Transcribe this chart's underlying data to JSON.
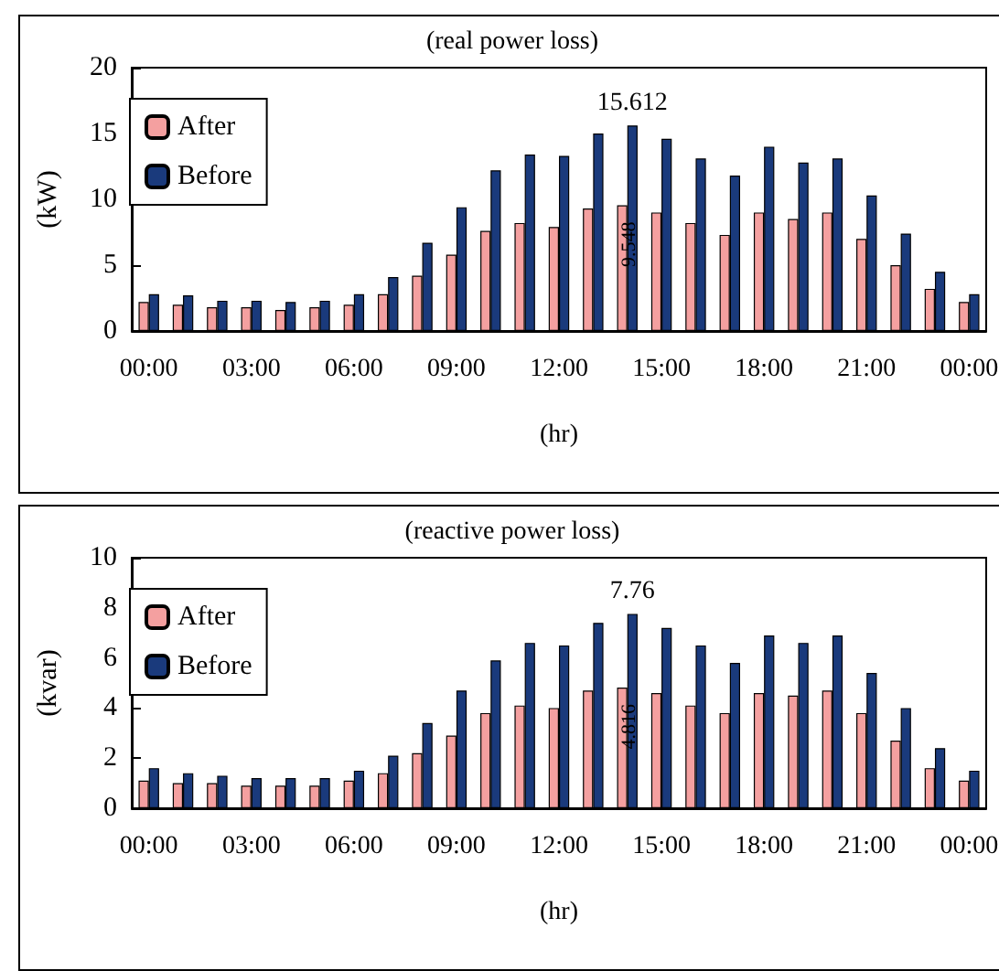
{
  "chart_data": [
    {
      "type": "bar",
      "title": "(real power loss)",
      "xlabel": "(hr)",
      "ylabel": "(kW)",
      "categories": [
        "00:00",
        null,
        null,
        "03:00",
        null,
        null,
        "06:00",
        null,
        null,
        "09:00",
        null,
        null,
        "12:00",
        null,
        null,
        "15:00",
        null,
        null,
        "18:00",
        null,
        null,
        "21:00",
        null,
        null,
        "00:00"
      ],
      "series": [
        {
          "name": "After",
          "color": "#f4a0a0",
          "values": [
            2.2,
            2.0,
            1.8,
            1.8,
            1.6,
            1.8,
            2.0,
            2.8,
            4.2,
            5.8,
            7.6,
            8.2,
            7.9,
            9.3,
            9.548,
            9.0,
            8.2,
            7.3,
            9.0,
            8.5,
            9.0,
            7.0,
            5.0,
            3.2,
            2.2
          ],
          "value_labels": [
            null,
            null,
            null,
            null,
            null,
            null,
            null,
            null,
            null,
            null,
            null,
            null,
            null,
            null,
            "9.548",
            null,
            null,
            null,
            null,
            null,
            null,
            null,
            null,
            null,
            null
          ]
        },
        {
          "name": "Before",
          "color": "#1a3a7c",
          "values": [
            2.8,
            2.7,
            2.3,
            2.3,
            2.2,
            2.3,
            2.8,
            4.1,
            6.7,
            9.4,
            12.2,
            13.4,
            13.3,
            15.0,
            15.612,
            14.6,
            13.1,
            11.8,
            14.0,
            12.8,
            13.1,
            10.3,
            7.4,
            4.5,
            2.8
          ],
          "value_labels": [
            null,
            null,
            null,
            null,
            null,
            null,
            null,
            null,
            null,
            null,
            null,
            null,
            null,
            null,
            "15.612",
            null,
            null,
            null,
            null,
            null,
            null,
            null,
            null,
            null,
            null
          ]
        }
      ],
      "ylim": [
        0,
        20
      ],
      "yticks": [
        0,
        5,
        10,
        15,
        20
      ],
      "grid": false,
      "legend": "top left"
    },
    {
      "type": "bar",
      "title": "(reactive power loss)",
      "xlabel": "(hr)",
      "ylabel": "(kvar)",
      "categories": [
        "00:00",
        null,
        null,
        "03:00",
        null,
        null,
        "06:00",
        null,
        null,
        "09:00",
        null,
        null,
        "12:00",
        null,
        null,
        "15:00",
        null,
        null,
        "18:00",
        null,
        null,
        "21:00",
        null,
        null,
        "00:00"
      ],
      "series": [
        {
          "name": "After",
          "color": "#f4a0a0",
          "values": [
            1.1,
            1.0,
            1.0,
            0.9,
            0.9,
            0.9,
            1.1,
            1.4,
            2.2,
            2.9,
            3.8,
            4.1,
            4.0,
            4.7,
            4.816,
            4.6,
            4.1,
            3.8,
            4.6,
            4.5,
            4.7,
            3.8,
            2.7,
            1.6,
            1.1
          ],
          "value_labels": [
            null,
            null,
            null,
            null,
            null,
            null,
            null,
            null,
            null,
            null,
            null,
            null,
            null,
            null,
            "4.816",
            null,
            null,
            null,
            null,
            null,
            null,
            null,
            null,
            null,
            null
          ]
        },
        {
          "name": "Before",
          "color": "#1a3a7c",
          "values": [
            1.6,
            1.4,
            1.3,
            1.2,
            1.2,
            1.2,
            1.5,
            2.1,
            3.4,
            4.7,
            5.9,
            6.6,
            6.5,
            7.4,
            7.76,
            7.2,
            6.5,
            5.8,
            6.9,
            6.6,
            6.9,
            5.4,
            4.0,
            2.4,
            1.5
          ],
          "value_labels": [
            null,
            null,
            null,
            null,
            null,
            null,
            null,
            null,
            null,
            null,
            null,
            null,
            null,
            null,
            "7.76",
            null,
            null,
            null,
            null,
            null,
            null,
            null,
            null,
            null,
            null
          ]
        }
      ],
      "ylim": [
        0,
        10
      ],
      "yticks": [
        0,
        2,
        4,
        6,
        8,
        10
      ],
      "grid": false,
      "legend": "top left"
    }
  ]
}
